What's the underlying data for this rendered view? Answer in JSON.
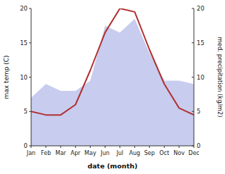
{
  "chart_data": {
    "type": "line",
    "categories": [
      "Jan",
      "Feb",
      "Mar",
      "Apr",
      "May",
      "Jun",
      "Jul",
      "Aug",
      "Sep",
      "Oct",
      "Nov",
      "Dec"
    ],
    "series": [
      {
        "type": "area",
        "color": "#c8ccee",
        "axis": "y2",
        "values": [
          7.0,
          9.0,
          8.0,
          8.0,
          9.5,
          17.5,
          16.5,
          18.5,
          13.5,
          9.5,
          9.5,
          9.0
        ]
      },
      {
        "type": "line",
        "color": "#b03030",
        "values": [
          5.0,
          4.5,
          4.5,
          6.0,
          11.0,
          16.5,
          20.0,
          19.5,
          14.0,
          9.0,
          5.5,
          4.5
        ]
      }
    ],
    "xlabel": "date (month)",
    "ylabel": "max temp (C)",
    "y2label": "med. precipitation (kg/m2)",
    "ylim": [
      0,
      20
    ],
    "yticks": [
      0,
      5,
      10,
      15,
      20
    ],
    "y2lim": [
      0,
      20
    ],
    "y2ticks": [
      0,
      5,
      10,
      15,
      20
    ],
    "grid": false
  }
}
